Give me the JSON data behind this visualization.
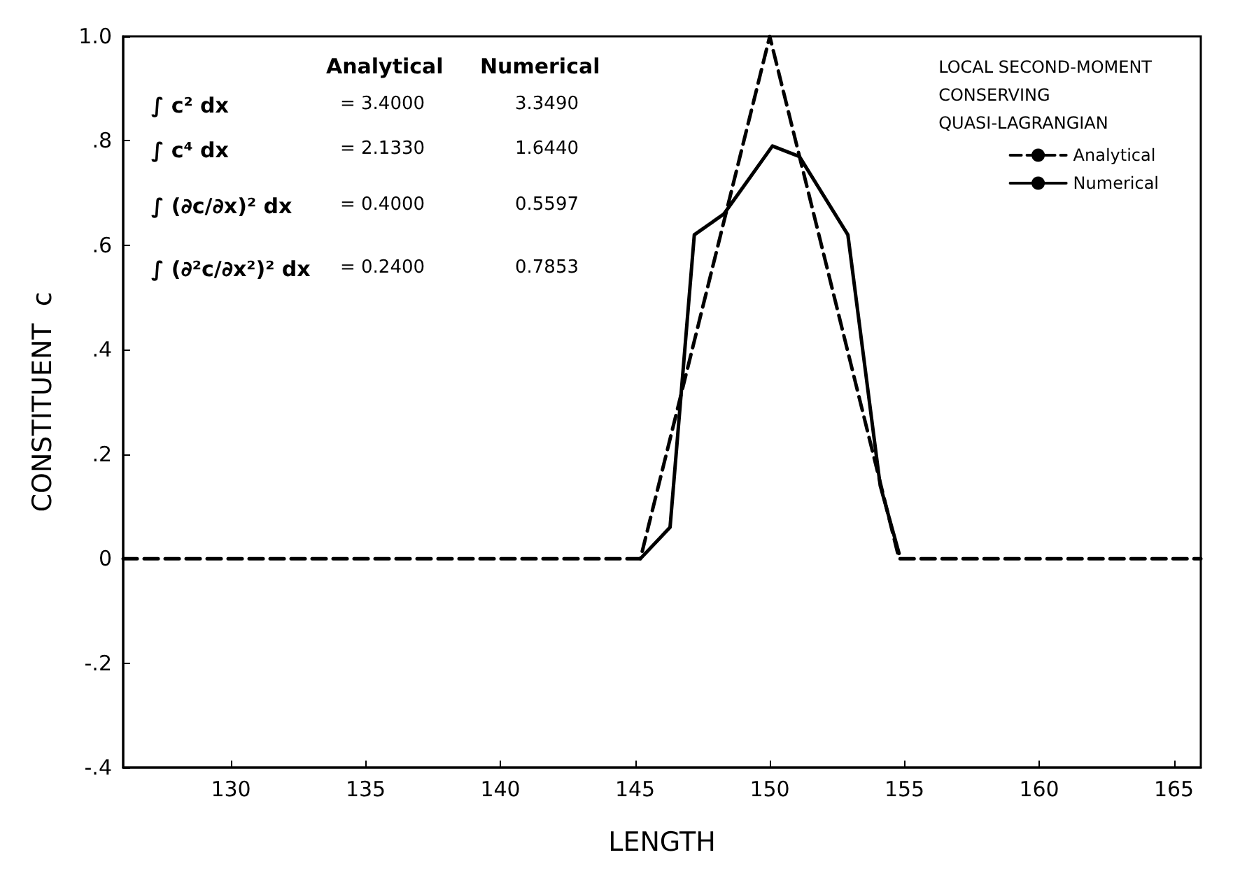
{
  "chart_data": {
    "type": "line",
    "xlabel": "LENGTH",
    "ylabel": "CONSTITUENT  c",
    "legend_title": "LOCAL SECOND-MOMENT\nCONSERVING\nQUASI-LAGRANGIAN",
    "legend": "top right",
    "grid": false,
    "marker": "none",
    "xlim": [
      126,
      166
    ],
    "xticks": [
      130,
      135,
      140,
      145,
      150,
      155,
      160,
      165
    ],
    "ylim": [
      -0.4,
      1.0
    ],
    "yticks": [
      {
        "value": -0.4,
        "label": "-.4"
      },
      {
        "value": -0.2,
        "label": "-.2"
      },
      {
        "value": 0,
        "label": "0"
      },
      {
        "value": 0.2,
        "label": ".2"
      },
      {
        "value": 0.4,
        "label": ".4"
      },
      {
        "value": 0.6,
        "label": ".6"
      },
      {
        "value": 0.8,
        "label": ".8"
      },
      {
        "value": 1.0,
        "label": "1.0"
      }
    ],
    "series": [
      {
        "name": "Analytical",
        "color": "#000000",
        "line_style": "dashed",
        "x": [
          126,
          145.2,
          150,
          154.8,
          166
        ],
        "values": [
          0,
          0,
          1,
          0,
          0
        ]
      },
      {
        "name": "Numerical",
        "color": "#000000",
        "line_style": "solid",
        "x": [
          145.2,
          146.3,
          147.2,
          148.3,
          150.1,
          151.1,
          152.9,
          154.1,
          154.8
        ],
        "values": [
          0,
          0.06,
          0.62,
          0.66,
          0.79,
          0.77,
          0.62,
          0.14,
          0.01
        ]
      }
    ],
    "annotations": [
      "Analytical",
      "Numerical",
      "∫ c² dx",
      "= 3.4000",
      "3.3490",
      "∫ c⁴ dx",
      "= 2.1330",
      "1.6440",
      "∫ (∂c/∂x)² dx",
      "= 0.4000",
      "0.5597",
      "∫ (∂²c/∂x²)² dx",
      "= 0.2400",
      "0.7853"
    ]
  }
}
